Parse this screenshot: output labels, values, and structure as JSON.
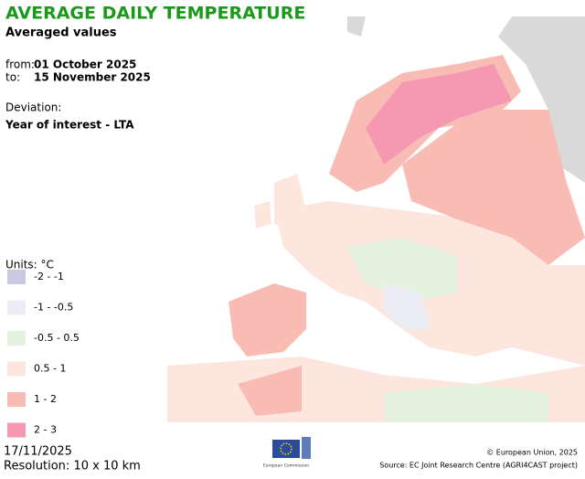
{
  "header": {
    "title": "AVERAGE DAILY TEMPERATURE",
    "subtitle": "Averaged values"
  },
  "period": {
    "from_label": "from:",
    "from": "01 October 2025",
    "to_label": "to:",
    "to": "15 November 2025"
  },
  "deviation": {
    "label": "Deviation:",
    "value": "Year of interest - LTA"
  },
  "legend": {
    "title": "Units: °C",
    "items": [
      {
        "label": "-2 - -1",
        "color": "#c9c9e2"
      },
      {
        "label": "-1 - -0.5",
        "color": "#ececf5"
      },
      {
        "label": "-0.5 - 0.5",
        "color": "#e4f2df"
      },
      {
        "label": "0.5 - 1",
        "color": "#fde6dd"
      },
      {
        "label": "1 - 2",
        "color": "#f8bcb4"
      },
      {
        "label": "2 - 3",
        "color": "#f598b1"
      }
    ]
  },
  "footer": {
    "date": "17/11/2025",
    "resolution": "Resolution: 10 x 10 km",
    "logo_text": "European Commission",
    "copyright": "© European Union, 2025",
    "source": "Source: EC Joint Research Centre (AGRI4CAST project)"
  }
}
